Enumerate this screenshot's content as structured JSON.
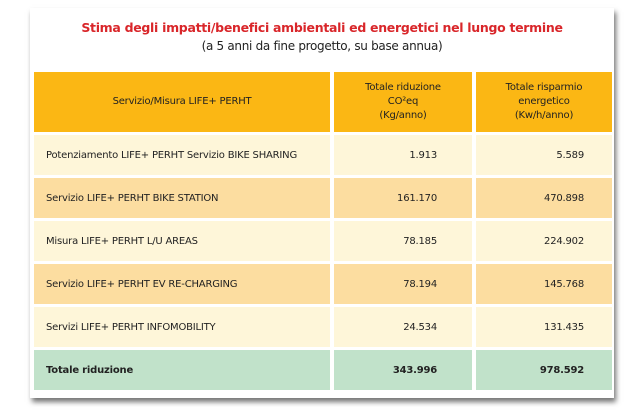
{
  "title": "Stima degli impatti/benefici ambientali ed energetici nel lungo termine",
  "subtitle": "(a 5 anni da fine progetto, su base annua)",
  "headers": {
    "col1": "Servizio/Misura LIFE+ PERHT",
    "col2": [
      "Totale riduzione",
      "CO²eq",
      "(Kg/anno)"
    ],
    "col3": [
      "Totale risparmio",
      "energetico",
      "(Kw/h/anno)"
    ]
  },
  "rows": [
    {
      "label": "Potenziamento LIFE+ PERHT Servizio BIKE SHARING",
      "co2": "1.913",
      "energy": "5.589"
    },
    {
      "label": "Servizio LIFE+ PERHT BIKE STATION",
      "co2": "161.170",
      "energy": "470.898"
    },
    {
      "label": "Misura LIFE+ PERHT L/U AREAS",
      "co2": "78.185",
      "energy": "224.902"
    },
    {
      "label": "Servizio LIFE+ PERHT EV RE-CHARGING",
      "co2": "78.194",
      "energy": "145.768"
    },
    {
      "label": "Servizi LIFE+ PERHT INFOMOBILITY",
      "co2": "24.534",
      "energy": "131.435"
    }
  ],
  "total": {
    "label": "Totale riduzione",
    "co2": "343.996",
    "energy": "978.592"
  },
  "colors": {
    "title": "#d9262a",
    "header": "#fbb714",
    "row_light": "#fef6d9",
    "row_dark": "#fcdda0",
    "total": "#c1e2ca"
  }
}
